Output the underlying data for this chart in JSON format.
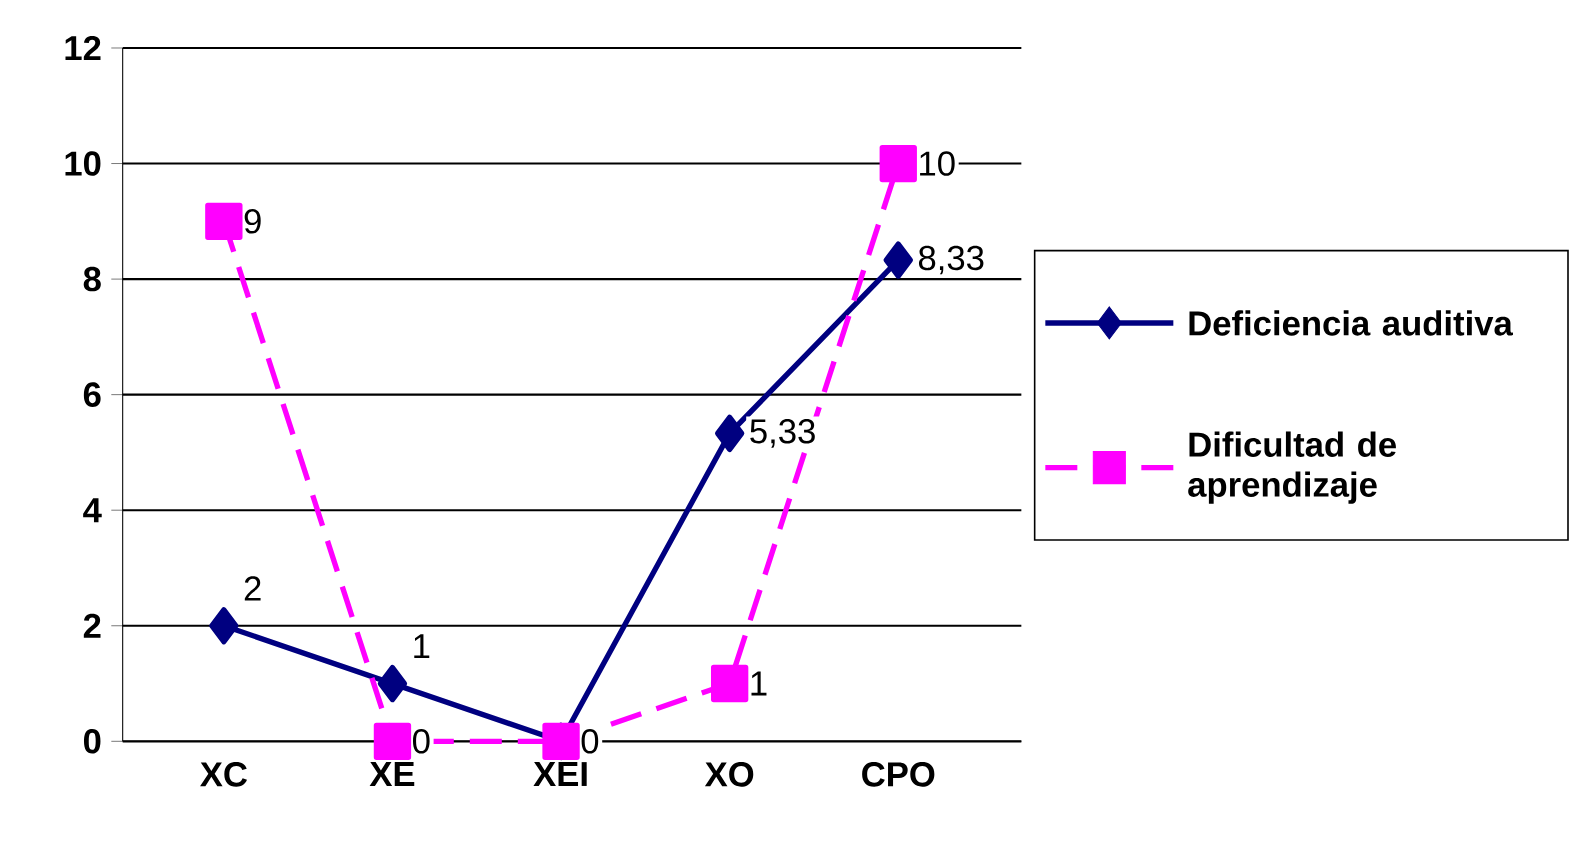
{
  "chart_data": {
    "type": "line",
    "categories": [
      "XC",
      "XE",
      "XEI",
      "XO",
      "CPO"
    ],
    "ylim": [
      0,
      12
    ],
    "yticks": [
      0,
      2,
      4,
      6,
      8,
      10,
      12
    ],
    "grid": "y",
    "legend": "right",
    "series": [
      {
        "name": "Deficiencia auditiva",
        "color": "#000080",
        "values": [
          2,
          1,
          0,
          5.33,
          8.33
        ],
        "value_labels": [
          "2",
          "1",
          null,
          "5,33",
          "8,33"
        ],
        "marker": "diamond",
        "line_style": "solid"
      },
      {
        "name": "Dificultad de aprendizaje",
        "color": "#ff00ff",
        "values": [
          9,
          0,
          0,
          1,
          10
        ],
        "value_labels": [
          "9",
          "0",
          "0",
          "1",
          "10"
        ],
        "marker": "square",
        "line_style": "dashed"
      }
    ]
  }
}
